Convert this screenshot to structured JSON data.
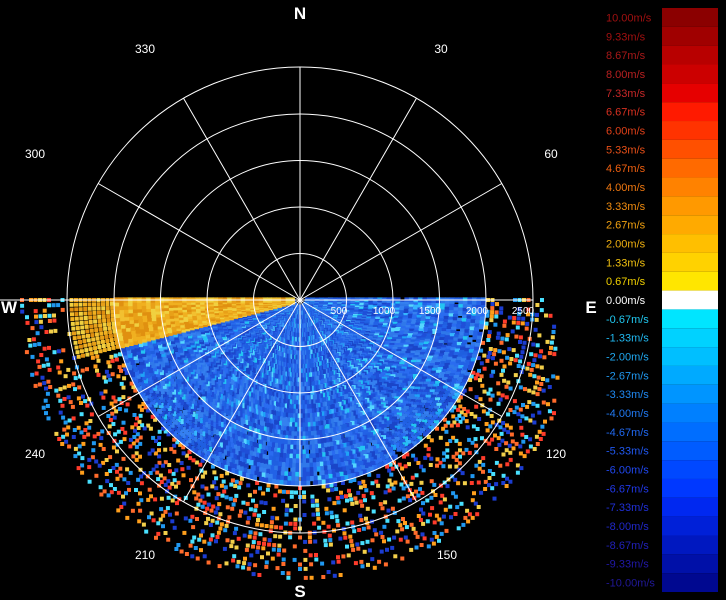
{
  "compass": {
    "north": "N",
    "south": "S",
    "east": "E",
    "west": "W"
  },
  "bearings": [
    "330",
    "30",
    "300",
    "60",
    "240",
    "120",
    "210",
    "150"
  ],
  "range_labels": [
    "500",
    "1000",
    "1500",
    "2000",
    "2500"
  ],
  "legend": {
    "unit_labels": [
      "10.00m/s",
      "9.33m/s",
      "8.67m/s",
      "8.00m/s",
      "7.33m/s",
      "6.67m/s",
      "6.00m/s",
      "5.33m/s",
      "4.67m/s",
      "4.00m/s",
      "3.33m/s",
      "2.67m/s",
      "2.00m/s",
      "1.33m/s",
      "0.67m/s",
      "0.00m/s",
      "-0.67m/s",
      "-1.33m/s",
      "-2.00m/s",
      "-2.67m/s",
      "-3.33m/s",
      "-4.00m/s",
      "-4.67m/s",
      "-5.33m/s",
      "-6.00m/s",
      "-6.67m/s",
      "-7.33m/s",
      "-8.00m/s",
      "-8.67m/s",
      "-9.33m/s",
      "-10.00m/s"
    ],
    "colors": [
      "#8b0000",
      "#a00000",
      "#b80000",
      "#cc0000",
      "#e60000",
      "#ff1a00",
      "#ff3300",
      "#ff5000",
      "#ff6a00",
      "#ff8200",
      "#ff9900",
      "#ffaa00",
      "#ffbf00",
      "#ffd200",
      "#ffe600",
      "#ffffff",
      "#00e5ff",
      "#00d2ff",
      "#00bfff",
      "#00aaff",
      "#0095ff",
      "#0080ff",
      "#006eff",
      "#005cff",
      "#0048ff",
      "#0038ff",
      "#0028f0",
      "#0020d8",
      "#0018c0",
      "#0010a8",
      "#000890"
    ],
    "label_colors": [
      "#a01010",
      "#a01010",
      "#a81818",
      "#b82020",
      "#c82828",
      "#d83020",
      "#e04018",
      "#e85018",
      "#f06010",
      "#f07810",
      "#f08c10",
      "#f0a010",
      "#f0b010",
      "#f0c010",
      "#f0d000",
      "#ffffff",
      "#20c8f0",
      "#20b8f0",
      "#20a8f0",
      "#2098f0",
      "#2088f0",
      "#2078f0",
      "#2068f0",
      "#2058f0",
      "#2048f0",
      "#2038e8",
      "#2030d8",
      "#2028c8",
      "#2020b8",
      "#2018a8",
      "#201898"
    ]
  }
}
